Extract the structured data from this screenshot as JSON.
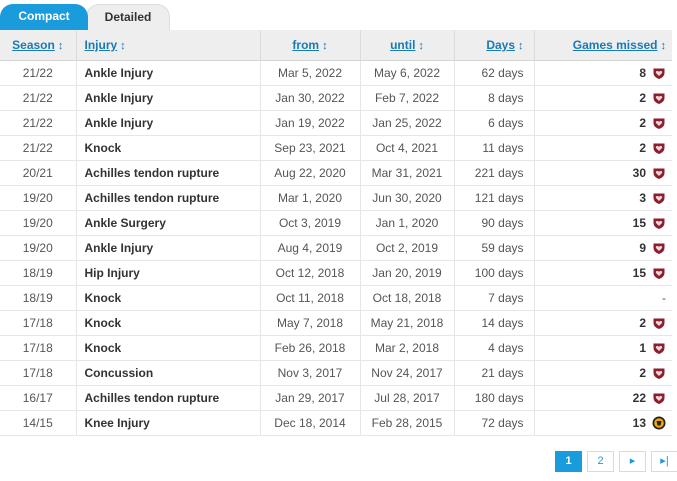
{
  "tabs": [
    {
      "label": "Compact",
      "active": true
    },
    {
      "label": "Detailed",
      "active": false
    }
  ],
  "table": {
    "headers": {
      "season": "Season",
      "injury": "Injury",
      "from": "from",
      "until": "until",
      "days": "Days",
      "games": "Games missed"
    },
    "sort_glyph": "↕",
    "rows": [
      {
        "season": "21/22",
        "injury": "Ankle Injury",
        "from": "Mar 5, 2022",
        "until": "May 6, 2022",
        "days": "62 days",
        "games": "8",
        "club_icon": "hearts-crest-icon"
      },
      {
        "season": "21/22",
        "injury": "Ankle Injury",
        "from": "Jan 30, 2022",
        "until": "Feb 7, 2022",
        "days": "8 days",
        "games": "2",
        "club_icon": "hearts-crest-icon"
      },
      {
        "season": "21/22",
        "injury": "Ankle Injury",
        "from": "Jan 19, 2022",
        "until": "Jan 25, 2022",
        "days": "6 days",
        "games": "2",
        "club_icon": "hearts-crest-icon"
      },
      {
        "season": "21/22",
        "injury": "Knock",
        "from": "Sep 23, 2021",
        "until": "Oct 4, 2021",
        "days": "11 days",
        "games": "2",
        "club_icon": "hearts-crest-icon"
      },
      {
        "season": "20/21",
        "injury": "Achilles tendon rupture",
        "from": "Aug 22, 2020",
        "until": "Mar 31, 2021",
        "days": "221 days",
        "games": "30",
        "club_icon": "hearts-crest-icon"
      },
      {
        "season": "19/20",
        "injury": "Achilles tendon rupture",
        "from": "Mar 1, 2020",
        "until": "Jun 30, 2020",
        "days": "121 days",
        "games": "3",
        "club_icon": "hearts-crest-icon"
      },
      {
        "season": "19/20",
        "injury": "Ankle Surgery",
        "from": "Oct 3, 2019",
        "until": "Jan 1, 2020",
        "days": "90 days",
        "games": "15",
        "club_icon": "hearts-crest-icon"
      },
      {
        "season": "19/20",
        "injury": "Ankle Injury",
        "from": "Aug 4, 2019",
        "until": "Oct 2, 2019",
        "days": "59 days",
        "games": "9",
        "club_icon": "hearts-crest-icon"
      },
      {
        "season": "18/19",
        "injury": "Hip Injury",
        "from": "Oct 12, 2018",
        "until": "Jan 20, 2019",
        "days": "100 days",
        "games": "15",
        "club_icon": "hearts-crest-icon"
      },
      {
        "season": "18/19",
        "injury": "Knock",
        "from": "Oct 11, 2018",
        "until": "Oct 18, 2018",
        "days": "7 days",
        "games": "-",
        "club_icon": ""
      },
      {
        "season": "17/18",
        "injury": "Knock",
        "from": "May 7, 2018",
        "until": "May 21, 2018",
        "days": "14 days",
        "games": "2",
        "club_icon": "hearts-crest-icon"
      },
      {
        "season": "17/18",
        "injury": "Knock",
        "from": "Feb 26, 2018",
        "until": "Mar 2, 2018",
        "days": "4 days",
        "games": "1",
        "club_icon": "hearts-crest-icon"
      },
      {
        "season": "17/18",
        "injury": "Concussion",
        "from": "Nov 3, 2017",
        "until": "Nov 24, 2017",
        "days": "21 days",
        "games": "2",
        "club_icon": "hearts-crest-icon"
      },
      {
        "season": "16/17",
        "injury": "Achilles tendon rupture",
        "from": "Jan 29, 2017",
        "until": "Jul 28, 2017",
        "days": "180 days",
        "games": "22",
        "club_icon": "hearts-crest-icon"
      },
      {
        "season": "14/15",
        "injury": "Knee Injury",
        "from": "Dec 18, 2014",
        "until": "Feb 28, 2015",
        "days": "72 days",
        "games": "13",
        "club_icon": "dundee-united-crest-icon"
      }
    ]
  },
  "pagination": {
    "pages": [
      "1",
      "2"
    ],
    "current": "1",
    "next_glyph": "▸",
    "last_glyph": "▸|"
  },
  "colors": {
    "accent": "#1a9bdc",
    "hearts_crest": "#8b1f2e",
    "dundee_crest": "#f2a900"
  }
}
